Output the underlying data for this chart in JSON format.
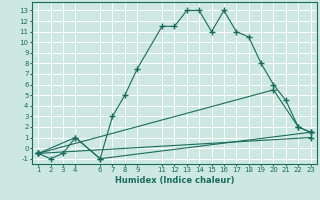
{
  "xlabel": "Humidex (Indice chaleur)",
  "background_color": "#cce8e0",
  "grid_color": "#ffffff",
  "line_color": "#1a6b5e",
  "x_ticks": [
    1,
    2,
    3,
    4,
    6,
    7,
    8,
    9,
    11,
    12,
    13,
    14,
    15,
    16,
    17,
    18,
    19,
    20,
    21,
    22,
    23
  ],
  "ylim": [
    -1.5,
    13.8
  ],
  "xlim": [
    0.5,
    23.5
  ],
  "yticks": [
    -1,
    0,
    1,
    2,
    3,
    4,
    5,
    6,
    7,
    8,
    9,
    10,
    11,
    12,
    13
  ],
  "lines": [
    {
      "x": [
        1,
        2,
        3,
        4,
        6,
        7,
        8,
        9,
        11,
        12,
        13,
        14,
        15,
        16,
        17,
        18,
        19,
        20,
        21,
        22,
        23
      ],
      "y": [
        -0.5,
        -1,
        -0.5,
        1,
        -1,
        3,
        5,
        7.5,
        11.5,
        11.5,
        13,
        13,
        11,
        13,
        11,
        10.5,
        8,
        6,
        4.5,
        2,
        1.5
      ]
    },
    {
      "x": [
        1,
        4,
        6,
        23
      ],
      "y": [
        -0.5,
        1,
        -1,
        1.5
      ]
    },
    {
      "x": [
        1,
        23
      ],
      "y": [
        -0.5,
        1.0
      ]
    },
    {
      "x": [
        1,
        20,
        22,
        23
      ],
      "y": [
        -0.5,
        5.5,
        2,
        1.5
      ]
    }
  ]
}
